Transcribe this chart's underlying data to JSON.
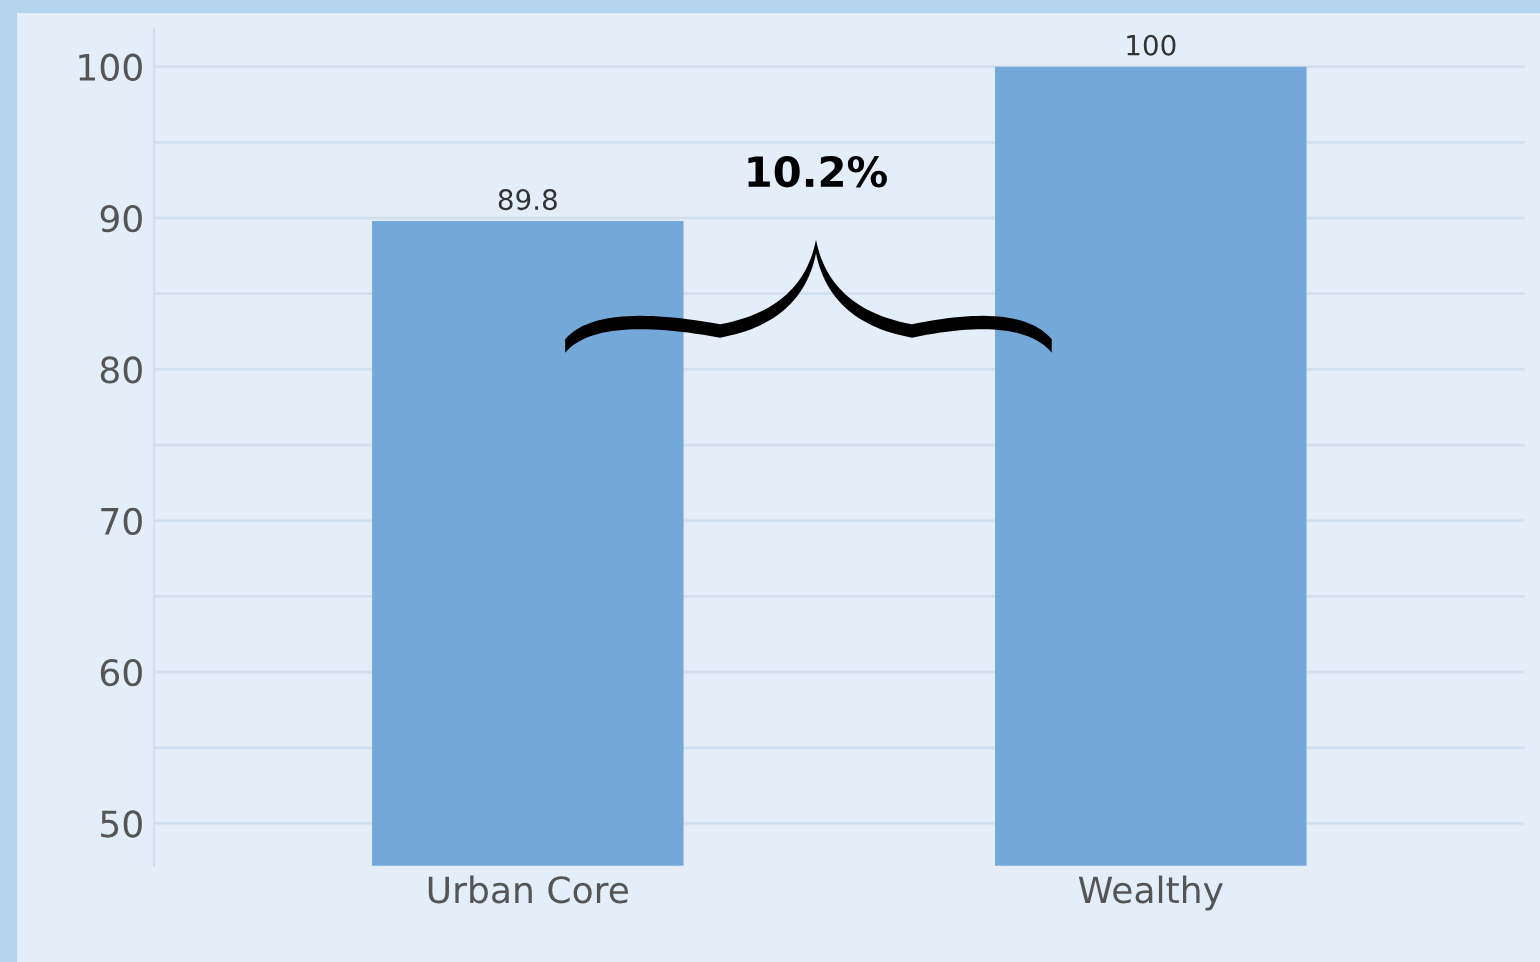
{
  "chart_data": {
    "type": "bar",
    "categories": [
      "Urban Core",
      "Wealthy"
    ],
    "values": [
      89.8,
      100
    ],
    "color": "#74a8d8",
    "data_labels": true,
    "ylim": [
      47.2,
      102.5
    ],
    "yticks": [
      50,
      {
        "value": 55,
        "label": null
      },
      60,
      {
        "value": 65,
        "label": null
      },
      70,
      {
        "value": 75,
        "label": null
      },
      80,
      {
        "value": 85,
        "label": null
      },
      90,
      {
        "value": 95,
        "label": null
      },
      100
    ],
    "grid": "y",
    "annotations": [
      "10.2%"
    ]
  }
}
